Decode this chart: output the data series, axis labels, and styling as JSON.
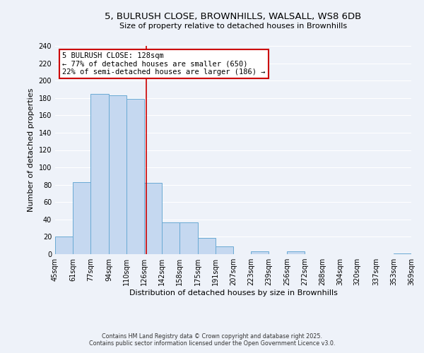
{
  "title_line1": "5, BULRUSH CLOSE, BROWNHILLS, WALSALL, WS8 6DB",
  "title_line2": "Size of property relative to detached houses in Brownhills",
  "xlabel": "Distribution of detached houses by size in Brownhills",
  "ylabel": "Number of detached properties",
  "bar_edges": [
    45,
    61,
    77,
    94,
    110,
    126,
    142,
    158,
    175,
    191,
    207,
    223,
    239,
    256,
    272,
    288,
    304,
    320,
    337,
    353,
    369
  ],
  "bar_heights": [
    20,
    83,
    185,
    183,
    179,
    82,
    37,
    37,
    19,
    9,
    0,
    3,
    0,
    3,
    0,
    0,
    0,
    0,
    0,
    1
  ],
  "bar_color": "#c5d8f0",
  "bar_edgecolor": "#6aaad4",
  "property_line_x": 128,
  "property_line_color": "#cc0000",
  "annotation_title": "5 BULRUSH CLOSE: 128sqm",
  "annotation_line1": "← 77% of detached houses are smaller (650)",
  "annotation_line2": "22% of semi-detached houses are larger (186) →",
  "annotation_box_facecolor": "#ffffff",
  "annotation_box_edgecolor": "#cc0000",
  "xlim_left": 45,
  "xlim_right": 369,
  "ylim_top": 240,
  "ylim_bottom": 0,
  "yticks": [
    0,
    20,
    40,
    60,
    80,
    100,
    120,
    140,
    160,
    180,
    200,
    220,
    240
  ],
  "xtick_labels": [
    "45sqm",
    "61sqm",
    "77sqm",
    "94sqm",
    "110sqm",
    "126sqm",
    "142sqm",
    "158sqm",
    "175sqm",
    "191sqm",
    "207sqm",
    "223sqm",
    "239sqm",
    "256sqm",
    "272sqm",
    "288sqm",
    "304sqm",
    "320sqm",
    "337sqm",
    "353sqm",
    "369sqm"
  ],
  "xtick_positions": [
    45,
    61,
    77,
    94,
    110,
    126,
    142,
    158,
    175,
    191,
    207,
    223,
    239,
    256,
    272,
    288,
    304,
    320,
    337,
    353,
    369
  ],
  "footer_line1": "Contains HM Land Registry data © Crown copyright and database right 2025.",
  "footer_line2": "Contains public sector information licensed under the Open Government Licence v3.0.",
  "background_color": "#eef2f9",
  "grid_color": "#ffffff",
  "title_fontsize": 9.5,
  "subtitle_fontsize": 8,
  "axis_label_fontsize": 8,
  "tick_fontsize": 7,
  "annotation_fontsize": 7.5,
  "footer_fontsize": 5.8
}
